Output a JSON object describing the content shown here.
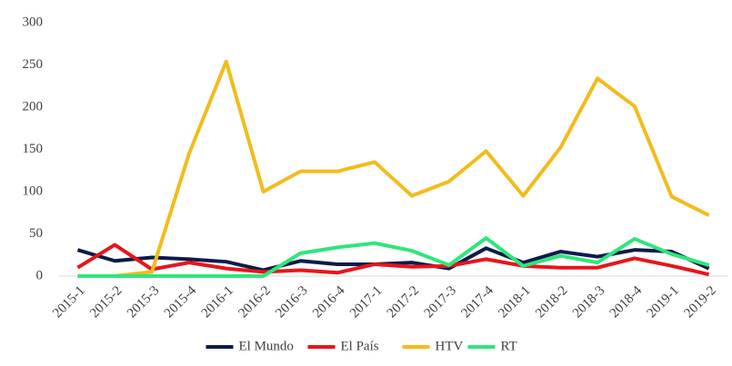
{
  "chart_data": {
    "type": "line",
    "categories": [
      "2015-1",
      "2015-2",
      "2015-3",
      "2015-4",
      "2016-1",
      "2016-2",
      "2016-3",
      "2016-4",
      "2017-1",
      "2017-2",
      "2017-3",
      "2017-4",
      "2018-1",
      "2018-2",
      "2018-3",
      "2018-4",
      "2019-1",
      "2019-2"
    ],
    "series": [
      {
        "name": "El Mundo",
        "color": "#0d1b4a",
        "values": [
          31,
          18,
          22,
          20,
          17,
          7,
          18,
          14,
          14,
          16,
          9,
          33,
          16,
          29,
          23,
          31,
          29,
          9
        ]
      },
      {
        "name": "El País",
        "color": "#e8141b",
        "values": [
          10,
          37,
          8,
          16,
          9,
          5,
          7,
          4,
          14,
          11,
          12,
          20,
          12,
          10,
          10,
          21,
          12,
          2
        ]
      },
      {
        "name": "HTV",
        "color": "#f2bc1b",
        "values": [
          0,
          0,
          5,
          145,
          254,
          100,
          124,
          124,
          135,
          95,
          112,
          148,
          95,
          152,
          234,
          201,
          94,
          72
        ]
      },
      {
        "name": "RT",
        "color": "#2ee67a",
        "values": [
          0,
          0,
          0,
          0,
          0,
          0,
          27,
          34,
          39,
          30,
          13,
          45,
          12,
          24,
          16,
          44,
          26,
          13
        ]
      }
    ],
    "ylim": [
      0,
      300
    ],
    "yticks": [
      0,
      50,
      100,
      150,
      200,
      250,
      300
    ],
    "grid": false,
    "legend": "bottom"
  }
}
